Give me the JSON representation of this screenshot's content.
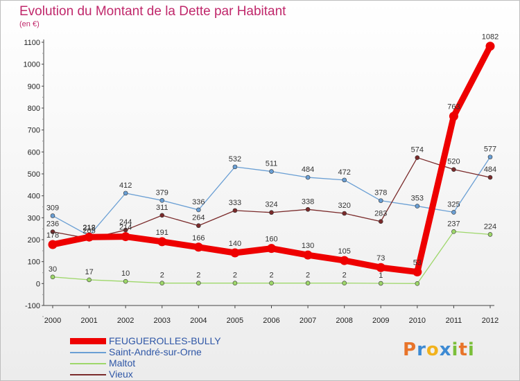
{
  "title": "Evolution du Montant de la Dette par Habitant",
  "unit_label": "(en €)",
  "logo": {
    "letters": [
      "P",
      "r",
      "o",
      "x",
      "i",
      "t",
      "i"
    ],
    "colors": [
      "#e8742a",
      "#3d8ad3",
      "#f2b21c",
      "#3d8ad3",
      "#7bbf3a",
      "#e8742a",
      "#7bbf3a"
    ]
  },
  "chart_data": {
    "type": "line",
    "x": [
      "2000",
      "2001",
      "2002",
      "2003",
      "2004",
      "2005",
      "2006",
      "2007",
      "2008",
      "2009",
      "2010",
      "2011",
      "2012"
    ],
    "ylim": [
      -100,
      1100
    ],
    "yticks": [
      -100,
      0,
      100,
      200,
      300,
      400,
      500,
      600,
      700,
      800,
      900,
      1000,
      1100
    ],
    "grid": false,
    "legend_position": "bottom-left",
    "series": [
      {
        "name": "FEUGUEROLLES-BULLY",
        "color": "#ee0000",
        "emphasis": true,
        "values": [
          178,
          212,
          214,
          191,
          166,
          140,
          160,
          130,
          105,
          73,
          53,
          763,
          1082
        ],
        "labels": [
          "178",
          "212",
          "214",
          "191",
          "166",
          "140",
          "160",
          "130",
          "105",
          "73",
          "53",
          "763",
          "1082"
        ]
      },
      {
        "name": "Saint-André-sur-Orne",
        "color": "#6a9fd4",
        "values": [
          309,
          218,
          412,
          379,
          336,
          532,
          511,
          484,
          472,
          378,
          353,
          325,
          577
        ],
        "labels": [
          "309",
          "218",
          "412",
          "379",
          "336",
          "532",
          "511",
          "484",
          "472",
          "378",
          "353",
          "325",
          "577"
        ]
      },
      {
        "name": "Maltot",
        "color": "#9ed76a",
        "values": [
          30,
          17,
          10,
          2,
          2,
          2,
          2,
          2,
          2,
          1,
          0,
          237,
          224
        ],
        "labels": [
          "30",
          "17",
          "10",
          "2",
          "2",
          "2",
          "2",
          "2",
          "2",
          "1",
          "",
          "237",
          "224"
        ]
      },
      {
        "name": "Vieux",
        "color": "#7a2a2a",
        "values": [
          236,
          205,
          244,
          311,
          264,
          333,
          324,
          338,
          320,
          283,
          574,
          520,
          484
        ],
        "labels": [
          "236",
          "205",
          "244",
          "311",
          "264",
          "333",
          "324",
          "338",
          "320",
          "283",
          "574",
          "520",
          "484"
        ]
      }
    ]
  }
}
